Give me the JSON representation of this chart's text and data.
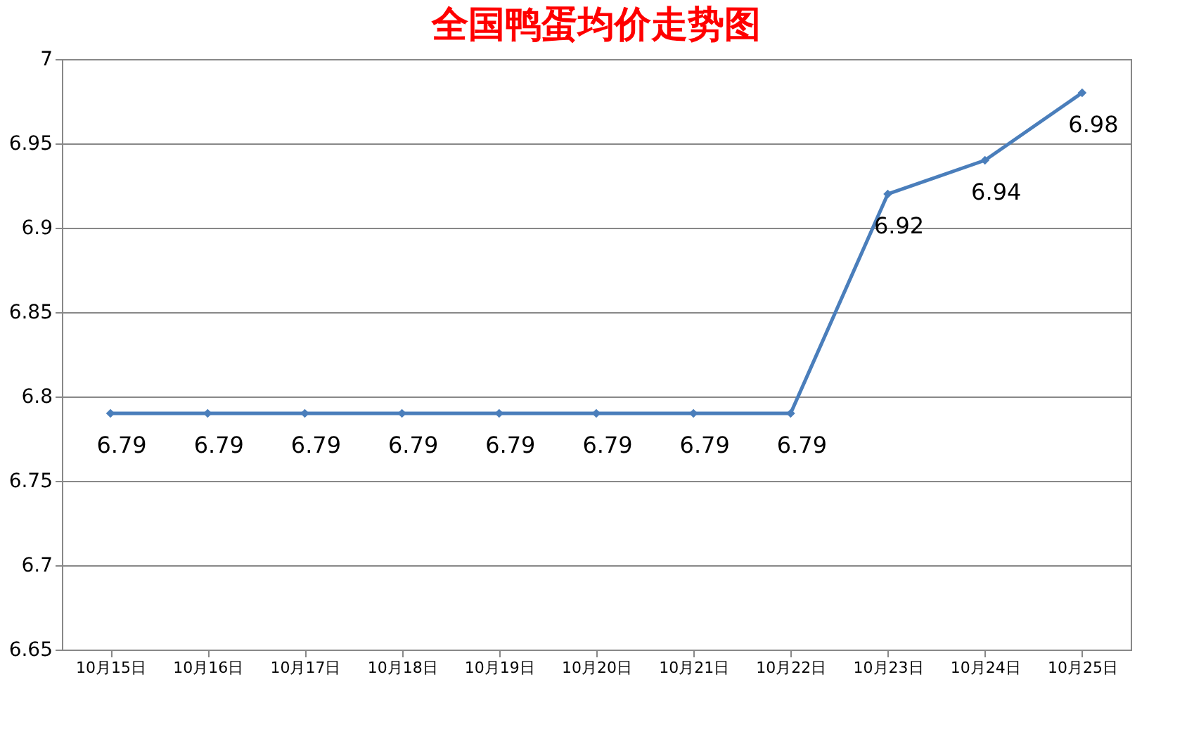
{
  "chart_data": {
    "type": "line",
    "title": "全国鸭蛋均价走势图",
    "categories": [
      "10月15日",
      "10月16日",
      "10月17日",
      "10月18日",
      "10月19日",
      "10月20日",
      "10月21日",
      "10月22日",
      "10月23日",
      "10月24日",
      "10月25日"
    ],
    "series": [
      {
        "color": "#4a7ebb",
        "values": [
          6.79,
          6.79,
          6.79,
          6.79,
          6.79,
          6.79,
          6.79,
          6.79,
          6.92,
          6.94,
          6.98
        ]
      }
    ],
    "ylim": [
      6.65,
      7
    ],
    "yticks": [
      6.65,
      6.7,
      6.75,
      6.8,
      6.85,
      6.9,
      6.95,
      7
    ],
    "grid": "y",
    "marker": "diamond",
    "line_style": "solid",
    "data_labels": true
  }
}
